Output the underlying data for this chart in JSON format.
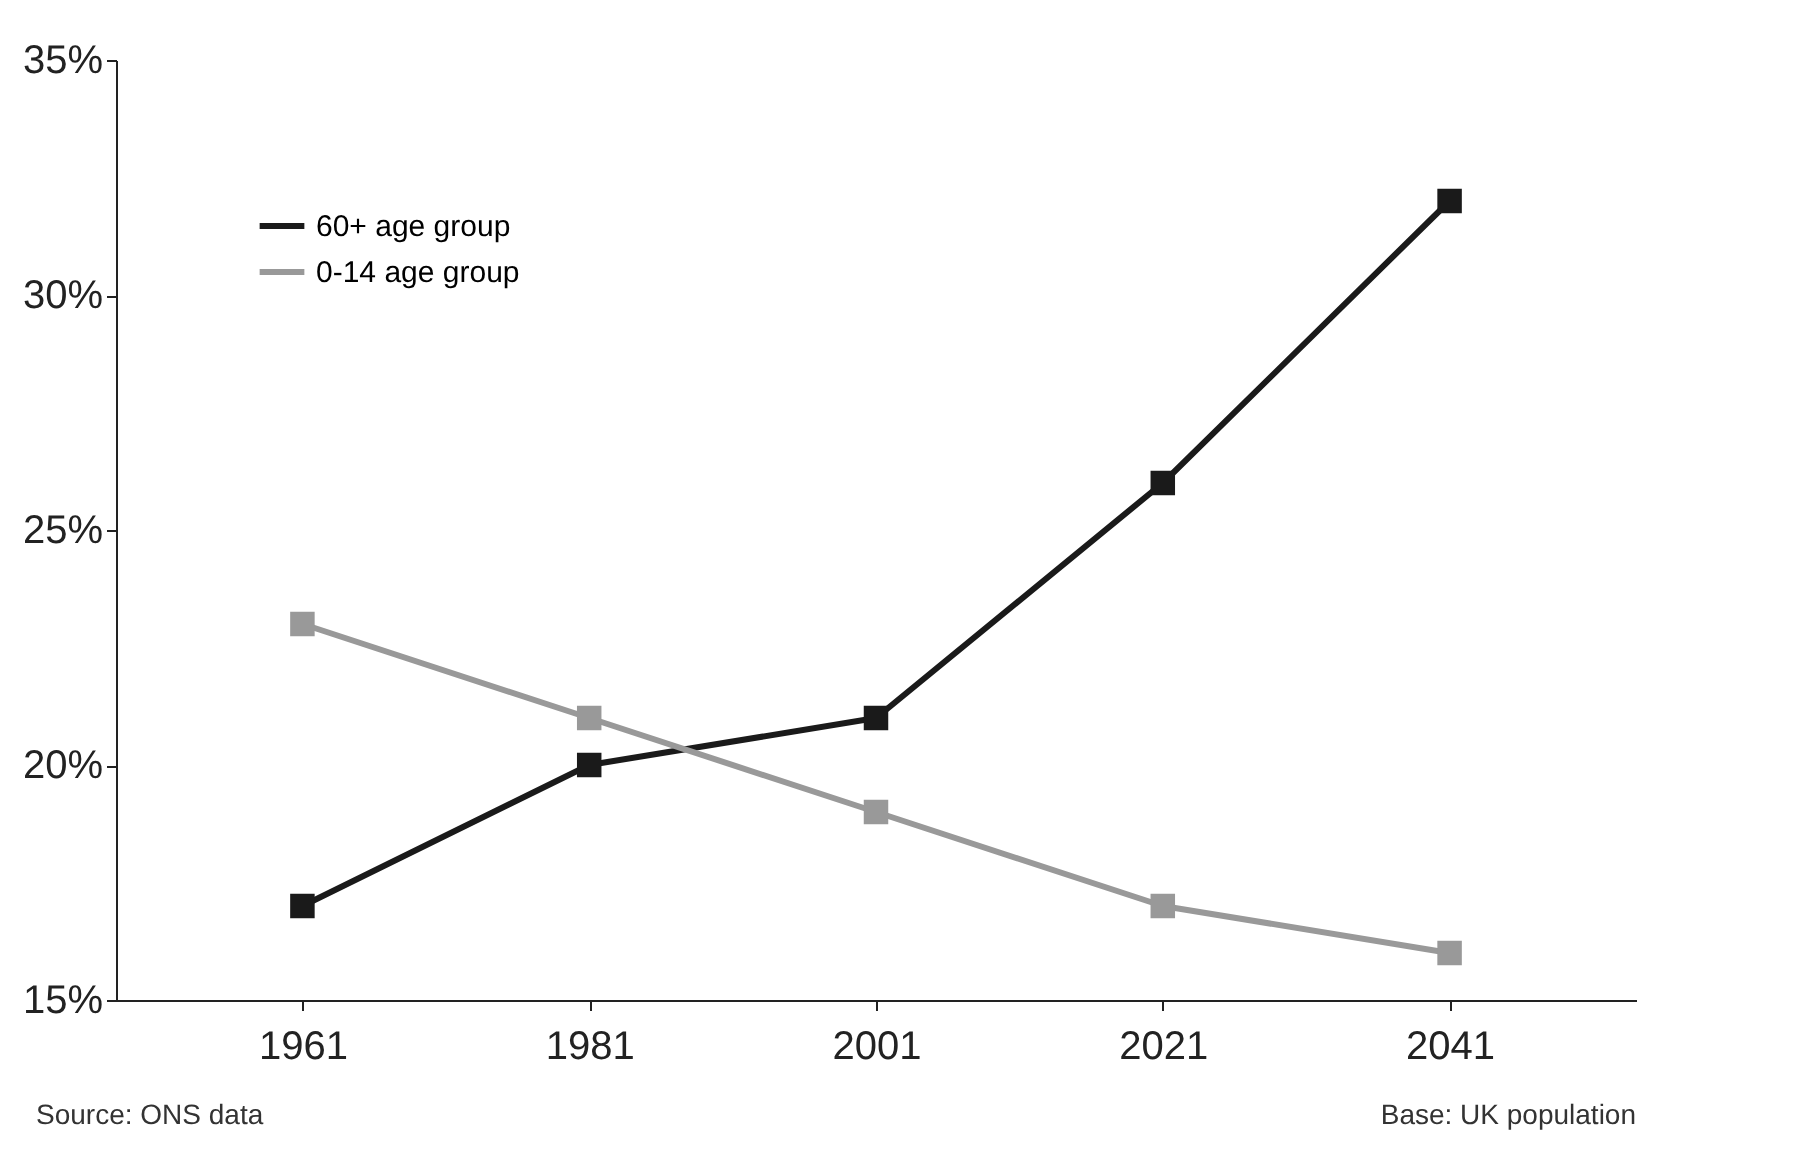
{
  "chart_data": {
    "type": "line",
    "categories": [
      "1961",
      "1981",
      "2001",
      "2021",
      "2041"
    ],
    "series": [
      {
        "name": "60+ age group",
        "color": "#1a1a1a",
        "values": [
          17,
          20,
          21,
          26,
          32
        ]
      },
      {
        "name": "0-14 age group",
        "color": "#999999",
        "values": [
          23,
          21,
          19,
          17,
          16
        ]
      }
    ],
    "ylim": [
      15,
      35
    ],
    "yticks": [
      {
        "value": 15,
        "label": "15%"
      },
      {
        "value": 20,
        "label": "20%"
      },
      {
        "value": 25,
        "label": "25%"
      },
      {
        "value": 30,
        "label": "30%"
      },
      {
        "value": 35,
        "label": "35%"
      }
    ],
    "grid": false,
    "legend": "top left",
    "marker": "square",
    "line_style": "solid",
    "annotations": [
      "Source: ONS data",
      "Base: UK population"
    ]
  }
}
